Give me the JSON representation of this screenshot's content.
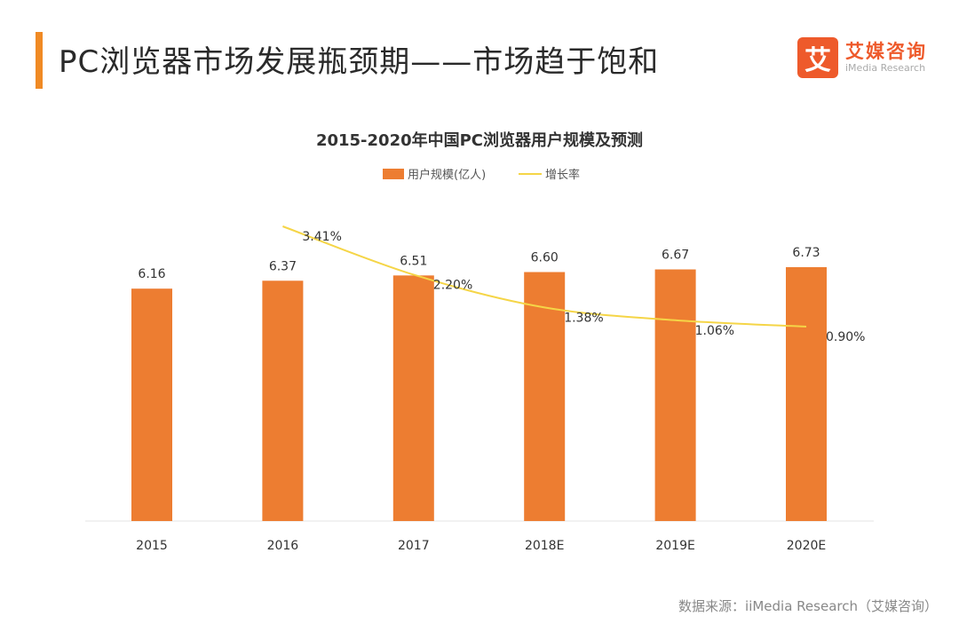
{
  "header": {
    "title": "PC浏览器市场发展瓶颈期——市场趋于饱和",
    "logo_mark": "艾",
    "logo_cn": "艾媒咨询",
    "logo_en": "iMedia Research"
  },
  "footer": {
    "source": "数据来源：iiMedia Research（艾媒咨询）"
  },
  "colors": {
    "bar": "#ed7d31",
    "line": "#f5d547",
    "accent": "#f08a24"
  },
  "chart_data": {
    "type": "bar",
    "title": "2015-2020年中国PC浏览器用户规模及预测",
    "categories": [
      "2015",
      "2016",
      "2017",
      "2018E",
      "2019E",
      "2020E"
    ],
    "series": [
      {
        "name": "用户规模(亿人)",
        "type": "bar",
        "values": [
          6.16,
          6.37,
          6.51,
          6.6,
          6.67,
          6.73
        ],
        "labels": [
          "6.16",
          "6.37",
          "6.51",
          "6.60",
          "6.67",
          "6.73"
        ]
      },
      {
        "name": "增长率",
        "type": "line",
        "values": [
          null,
          3.41,
          2.2,
          1.38,
          1.06,
          0.9
        ],
        "labels": [
          "",
          "3.41%",
          "2.20%",
          "1.38%",
          "1.06%",
          "0.90%"
        ]
      }
    ],
    "legend_position": "top-center",
    "grid": false
  }
}
